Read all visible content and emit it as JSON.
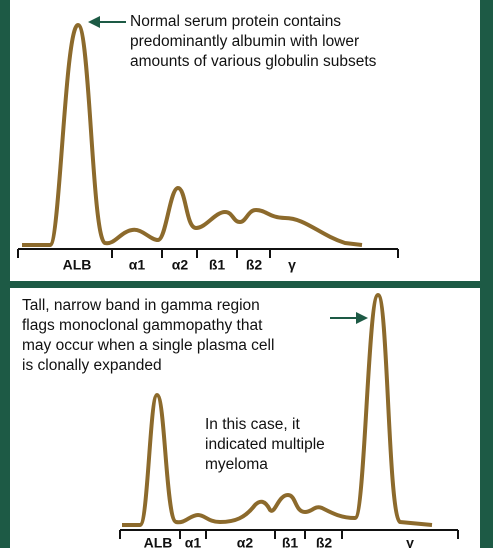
{
  "panels": [
    {
      "annotations": [
        {
          "lines": [
            "Normal serum protein contains",
            "predominantly albumin with lower",
            "amounts of various globulin subsets"
          ]
        }
      ],
      "regions": [
        "ALB",
        "α1",
        "α2",
        "ß1",
        "ß2",
        "γ"
      ]
    },
    {
      "annotations": [
        {
          "lines": [
            "Tall, narrow band in gamma region",
            "flags monoclonal gammopathy that",
            "may occur when a single plasma cell",
            "is clonally expanded"
          ]
        },
        {
          "lines": [
            "In this case, it",
            "indicated multiple",
            "myeloma"
          ]
        }
      ],
      "regions": [
        "ALB",
        "α1",
        "α2",
        "ß1",
        "ß2",
        "γ"
      ]
    }
  ]
}
